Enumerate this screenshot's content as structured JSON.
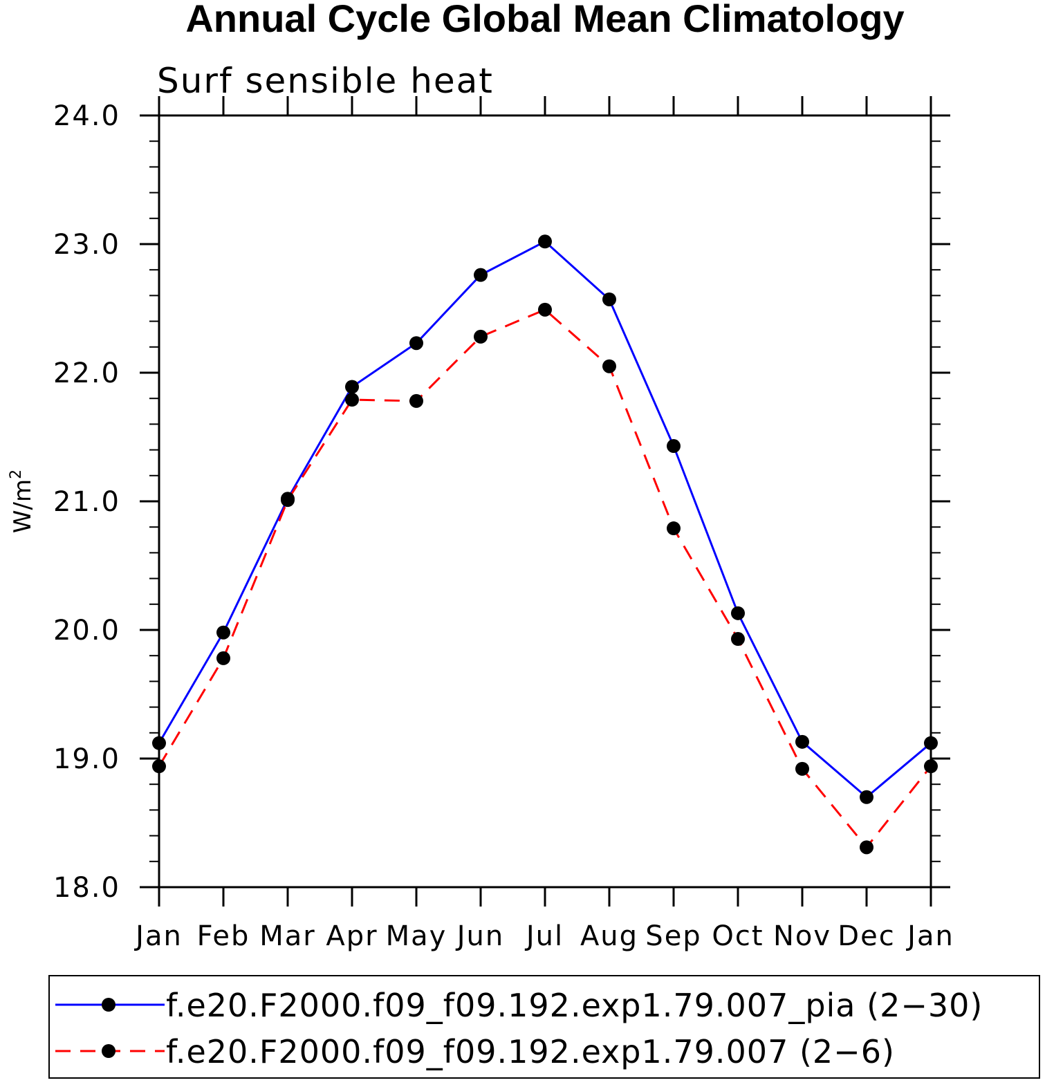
{
  "chart_data": {
    "type": "line",
    "title": "Annual Cycle Global Mean Climatology",
    "subtitle": "Surf sensible heat",
    "ylabel": "W/m",
    "ylabel_superscript": "2",
    "xlabel": "",
    "categories": [
      "Jan",
      "Feb",
      "Mar",
      "Apr",
      "May",
      "Jun",
      "Jul",
      "Aug",
      "Sep",
      "Oct",
      "Nov",
      "Dec",
      "Jan"
    ],
    "ylim": [
      18.0,
      24.0
    ],
    "yticks": [
      "18.0",
      "19.0",
      "20.0",
      "21.0",
      "22.0",
      "23.0",
      "24.0"
    ],
    "y_minor_step": 0.2,
    "grid": false,
    "legend_position": "bottom",
    "series": [
      {
        "name": "f.e20.F2000.f09_f09.192.exp1.79.007_pia (2−30)",
        "color": "#0000ff",
        "style": "solid",
        "marker": "filled-circle",
        "values": [
          19.12,
          19.98,
          21.02,
          21.89,
          22.23,
          22.76,
          23.02,
          22.57,
          21.43,
          20.13,
          19.13,
          18.7,
          19.12
        ]
      },
      {
        "name": "f.e20.F2000.f09_f09.192.exp1.79.007 (2−6)",
        "color": "#ff0000",
        "style": "dashed",
        "marker": "filled-circle",
        "values": [
          18.94,
          19.78,
          21.01,
          21.79,
          21.78,
          22.28,
          22.49,
          22.05,
          20.79,
          19.93,
          18.92,
          18.31,
          18.94
        ]
      }
    ]
  }
}
